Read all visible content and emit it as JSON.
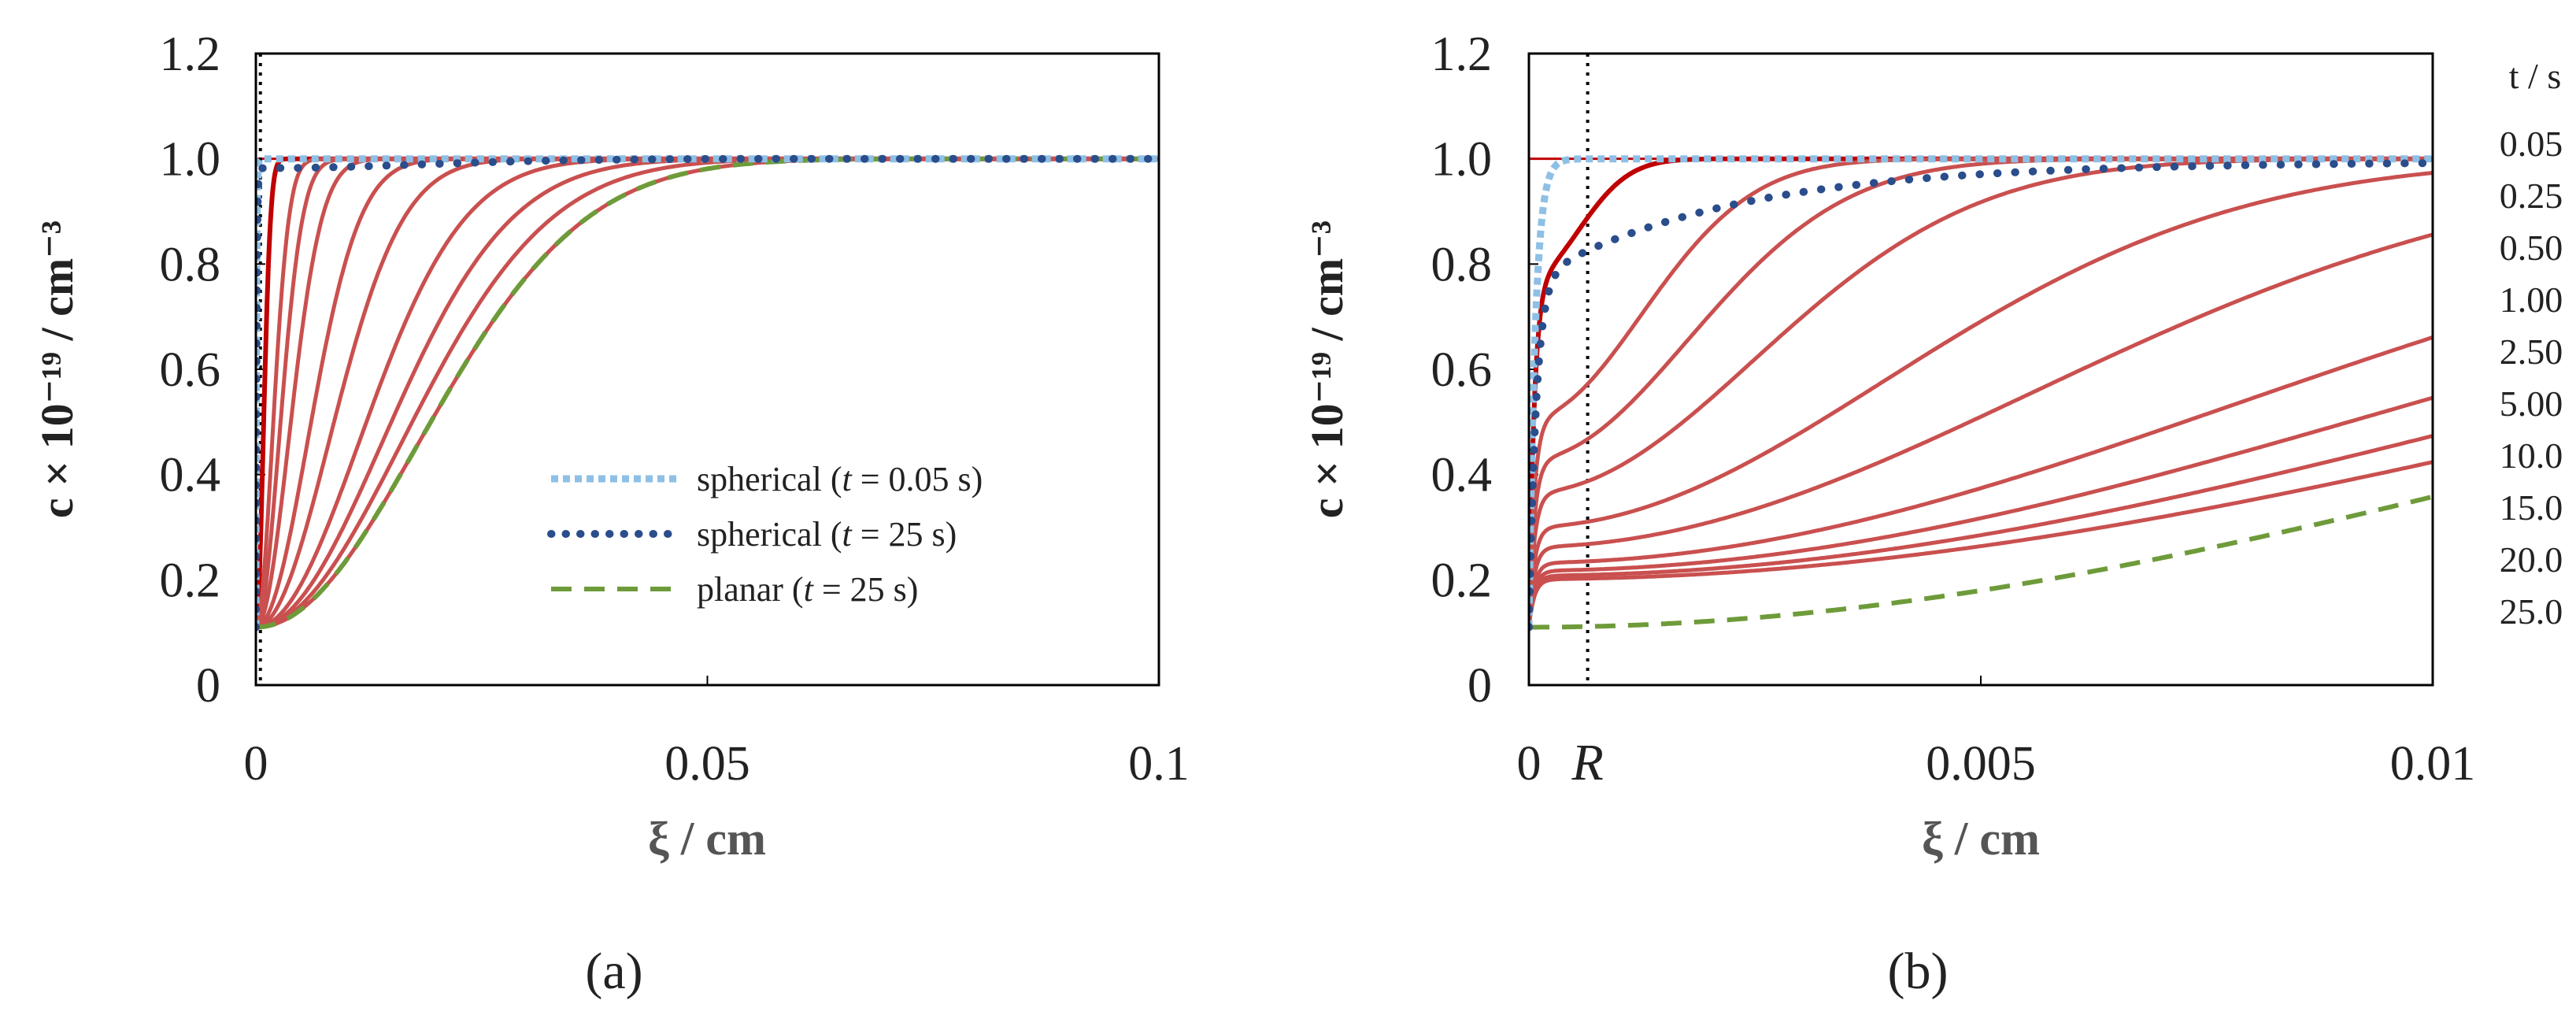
{
  "colors": {
    "t_curve": "#c9504f",
    "t_curve_first": "#c00000",
    "spherical_short": "#8ec0e6",
    "spherical_long": "#2a4d8c",
    "planar": "#6e9b3a",
    "axis": "#000000"
  },
  "chart_data": [
    {
      "id": "a",
      "type": "line",
      "panel_label": "(a)",
      "xlabel": "ξ / cm",
      "ylabel": "c × 10⁻¹⁹ / cm⁻³",
      "xlim": [
        0,
        0.1
      ],
      "ylim": [
        0,
        1.2
      ],
      "xticks": [
        0,
        0.05,
        0.1
      ],
      "xtick_labels": [
        "0",
        "0.05",
        "0.1"
      ],
      "yticks": [
        0,
        0.2,
        0.4,
        0.6,
        0.8,
        1.0,
        1.2
      ],
      "ytick_labels": [
        "0",
        "0.2",
        "0.4",
        "0.6",
        "0.8",
        "1.0",
        "1.2"
      ],
      "vline_x": 0.0005,
      "times": [
        0.05,
        0.25,
        0.5,
        1.0,
        2.5,
        5.0,
        10.0,
        15.0,
        20.0,
        25.0
      ],
      "legend": [
        {
          "label_pre": "spherical (",
          "label_it": "t",
          "label_post": " = 0.05 s)",
          "style": "spherical_short"
        },
        {
          "label_pre": "spherical (",
          "label_it": "t",
          "label_post": " = 25 s)",
          "style": "spherical_long"
        },
        {
          "label_pre": "planar (",
          "label_it": "t",
          "label_post": " = 25 s)",
          "style": "planar"
        }
      ]
    },
    {
      "id": "b",
      "type": "line",
      "panel_label": "(b)",
      "xlabel": "ξ / cm",
      "ylabel": "c × 10⁻¹⁹ / cm⁻³",
      "xlim": [
        0,
        0.01
      ],
      "ylim": [
        0,
        1.2
      ],
      "xticks": [
        0,
        0.005,
        0.01
      ],
      "xtick_labels": [
        "0",
        "0.005",
        "0.01"
      ],
      "yticks": [
        0,
        0.2,
        0.4,
        0.6,
        0.8,
        1.0,
        1.2
      ],
      "ytick_labels": [
        "0",
        "0.2",
        "0.4",
        "0.6",
        "0.8",
        "1.0",
        "1.2"
      ],
      "vline_x": 0.00065,
      "vline_label": "R",
      "time_axis_label": "t / s",
      "times": [
        0.05,
        0.25,
        0.5,
        1.0,
        2.5,
        5.0,
        10.0,
        15.0,
        20.0,
        25.0
      ],
      "time_labels": [
        "0.05",
        "0.25",
        "0.50",
        "1.00",
        "2.50",
        "5.00",
        "10.0",
        "15.0",
        "20.0",
        "25.0"
      ]
    }
  ]
}
